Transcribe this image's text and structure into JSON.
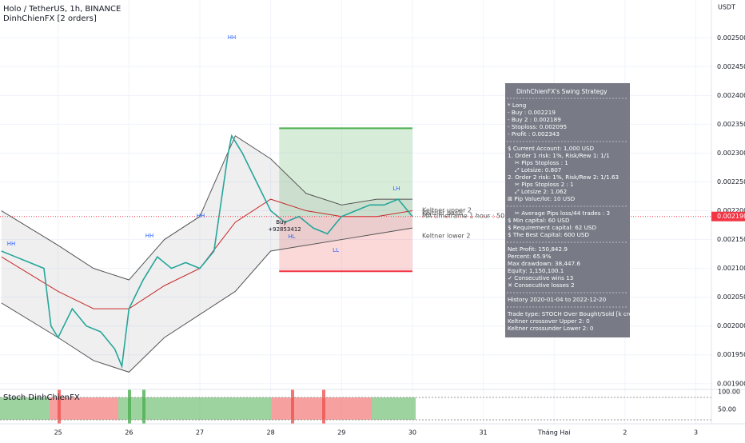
{
  "header": {
    "symbol": "Holo / TetherUS, 1h, BINANCE",
    "indicator": "DinhChienFX [2 orders]",
    "currency": "USDT"
  },
  "chart_data": {
    "type": "line",
    "xlim": [
      24.18,
      34.22
    ],
    "xticks": [
      25,
      26,
      27,
      28,
      29,
      30,
      31,
      {
        "value": 32,
        "label": "Tháng Hai"
      },
      {
        "value": 33,
        "label": "2"
      },
      {
        "value": 34,
        "label": "3"
      }
    ],
    "ylim": [
      0.00189,
      0.00256
    ],
    "yticks": [
      {
        "value": 0.0019,
        "label": "0.001900"
      },
      {
        "value": 0.00195,
        "label": "0.001950"
      },
      {
        "value": 0.002,
        "label": "0.002000"
      },
      {
        "value": 0.00205,
        "label": "0.002050"
      },
      {
        "value": 0.0021,
        "label": "0.002100"
      },
      {
        "value": 0.00215,
        "label": "0.002150"
      },
      {
        "value": 0.0022,
        "label": "0.002200"
      },
      {
        "value": 0.00225,
        "label": "0.002250"
      },
      {
        "value": 0.0023,
        "label": "0.002300"
      },
      {
        "value": 0.00235,
        "label": "0.002350"
      },
      {
        "value": 0.0024,
        "label": "0.002400"
      },
      {
        "value": 0.00245,
        "label": "0.002450"
      },
      {
        "value": 0.0025,
        "label": "0.002500"
      }
    ],
    "grid": true,
    "series": [
      {
        "name": "Keltner upper 2",
        "color": "#555555",
        "x": [
          24.2,
          25,
          25.5,
          26,
          26.5,
          27,
          27.5,
          28,
          28.5,
          29,
          29.5,
          30
        ],
        "values": [
          0.0022,
          0.00214,
          0.0021,
          0.00208,
          0.00215,
          0.00219,
          0.00233,
          0.00229,
          0.00223,
          0.00221,
          0.00222,
          0.00222
        ]
      },
      {
        "name": "Keltner basis",
        "color": "#c62828",
        "x": [
          24.2,
          25,
          25.5,
          26,
          26.5,
          27,
          27.5,
          28,
          28.5,
          29,
          29.5,
          30
        ],
        "values": [
          0.00212,
          0.00206,
          0.00203,
          0.00203,
          0.00207,
          0.0021,
          0.00218,
          0.00222,
          0.0022,
          0.00219,
          0.00219,
          0.0022
        ]
      },
      {
        "name": "Keltner lower 2",
        "color": "#555555",
        "x": [
          24.2,
          25,
          25.5,
          26,
          26.5,
          27,
          27.5,
          28,
          28.5,
          29,
          29.5,
          30
        ],
        "values": [
          0.00204,
          0.00198,
          0.00194,
          0.00192,
          0.00198,
          0.00202,
          0.00206,
          0.00213,
          0.00214,
          0.00215,
          0.00216,
          0.00217
        ]
      },
      {
        "name": "Holo / TetherUS",
        "color": "#26a69a",
        "x": [
          24.2,
          24.4,
          24.6,
          24.8,
          24.9,
          25.0,
          25.2,
          25.4,
          25.6,
          25.8,
          25.9,
          26.0,
          26.2,
          26.4,
          26.6,
          26.8,
          27.0,
          27.2,
          27.4,
          27.45,
          27.6,
          27.8,
          28.0,
          28.2,
          28.4,
          28.6,
          28.8,
          29.0,
          29.2,
          29.4,
          29.6,
          29.8,
          30.0
        ],
        "values": [
          0.00213,
          0.00212,
          0.00211,
          0.0021,
          0.002,
          0.00198,
          0.00203,
          0.002,
          0.00199,
          0.00196,
          0.00193,
          0.00203,
          0.00208,
          0.00212,
          0.0021,
          0.00211,
          0.0021,
          0.00213,
          0.0023,
          0.00233,
          0.0023,
          0.00225,
          0.0022,
          0.00218,
          0.00219,
          0.00217,
          0.00216,
          0.00219,
          0.0022,
          0.00221,
          0.00221,
          0.00222,
          0.00219
        ]
      }
    ],
    "ma_label": "MA timeframe 1 hour : 50",
    "position": {
      "x": [
        28.12,
        30.0
      ],
      "target": 0.002343,
      "entry": 0.00219,
      "stop": 0.002095
    },
    "last_price": {
      "value": 0.00219,
      "label": "0.002190"
    },
    "annotations": [
      "HH",
      "HH",
      "HH",
      "HH",
      "LH",
      "HL",
      "LL",
      "Buy",
      "+92853412"
    ],
    "oscillator": {
      "title": "Stoch DinhChienFX",
      "ticks": [
        "100.00",
        "50.00"
      ]
    }
  },
  "panel": {
    "title": "DinhChienFX's Swing Strategy",
    "sections": [
      [
        "* Long",
        "- Buy   : 0.002219",
        "- Buy 2  : 0.002189",
        "- Stoploss: 0.002095",
        "- Profit  : 0.002343"
      ],
      [
        "$ Current Account: 1,000 USD",
        "1. Order 1 risk: 1%, Risk/Rew 1: 1/1",
        "✂ Pips Stoploss : 1",
        "⤢ Lotsize: 0.807",
        "2. Order 2 risk: 1%, Risk/Rew 2: 1/1.63",
        "✂ Pips Stoploss 2 : 1",
        "⤢ Lotsize 2: 1.062",
        "⊠ Pip Value/lot: 10 USD"
      ],
      [
        "✂ Average Pips loss/44 trades : 3",
        "$ Min capital: 60 USD",
        "$ Requirement capital: 62 USD",
        "$ The Best Capital: 600 USD"
      ],
      [
        "Net Profit: 150,842.9",
        "Percent: 65.9%",
        "Max drawdown: 38,447.6",
        "Equity: 1,150,100.1",
        "✓ Consecutive wins 13",
        "✕ Consecutive losses 2"
      ],
      [
        "History 2020-01-04 to 2022-12-20"
      ],
      [
        "Trade type: STOCH Over Bought/Sold [k cross d]",
        "Keltner crossover Upper 2: 0",
        "Keltner crossunder Lower 2: 0"
      ]
    ]
  }
}
